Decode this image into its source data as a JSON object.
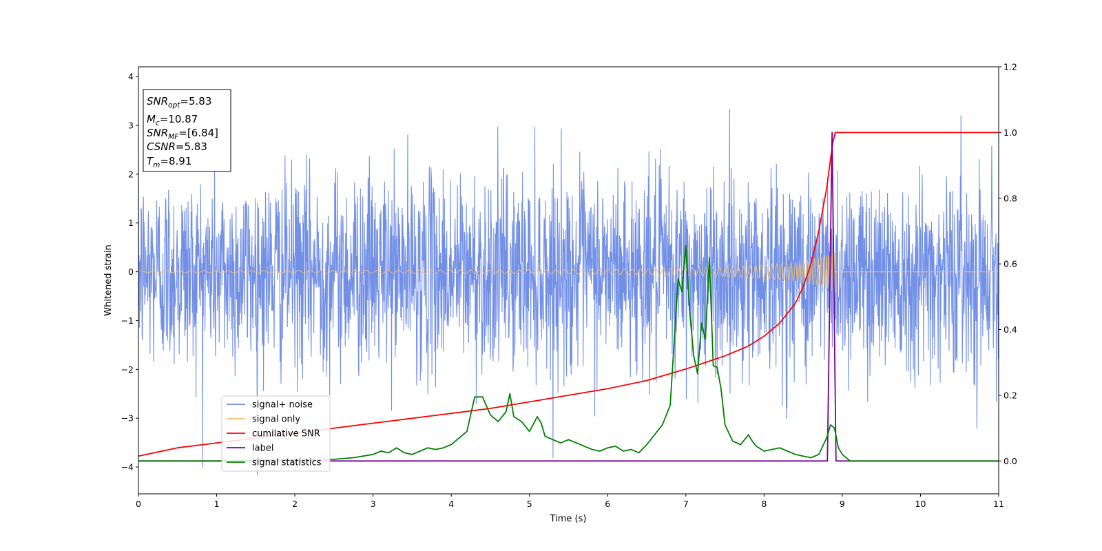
{
  "chart_data": {
    "type": "line",
    "xlabel": "Time (s)",
    "ylabel": "Whitened strain",
    "xlim": [
      0,
      11
    ],
    "ylim": [
      -4.55,
      4.2
    ],
    "ylim_right": [
      -0.1,
      1.2
    ],
    "xticks": [
      "0",
      "1",
      "2",
      "3",
      "4",
      "5",
      "6",
      "7",
      "8",
      "9",
      "10",
      "11"
    ],
    "yticks": [
      "4",
      "3",
      "2",
      "1",
      "0",
      "−1",
      "−2",
      "−3",
      "−4"
    ],
    "yticks_right": [
      "1.2",
      "1.0",
      "0.8",
      "0.6",
      "0.4",
      "0.2",
      "0.0"
    ],
    "grid": false,
    "legend_position": "lower-left",
    "annotation": {
      "snr_opt": "5.83",
      "mc": "10.87",
      "snr_mf": "[6.84]",
      "csnr": "5.83",
      "tm": "8.91"
    },
    "series": [
      {
        "name": "signal+ noise",
        "color": "#6a89e6",
        "axis": "left",
        "noise_sigma": 1.0,
        "x_range": [
          0,
          11
        ]
      },
      {
        "name": "signal only",
        "color": "#f5c26b",
        "axis": "left",
        "envelope": {
          "x": [
            0,
            3,
            5,
            6,
            7,
            7.5,
            8,
            8.3,
            8.5,
            8.7,
            8.8,
            8.87,
            8.91
          ],
          "amp": [
            0.02,
            0.03,
            0.04,
            0.05,
            0.08,
            0.1,
            0.14,
            0.18,
            0.22,
            0.3,
            0.36,
            0.4,
            0.4
          ]
        }
      },
      {
        "name": "cumilative SNR",
        "color": "#ff0000",
        "axis": "right",
        "x": [
          0,
          0.5,
          1,
          1.5,
          2,
          2.5,
          3,
          3.5,
          4,
          4.5,
          5,
          5.5,
          6,
          6.5,
          7,
          7.5,
          7.8,
          8,
          8.2,
          8.4,
          8.5,
          8.6,
          8.7,
          8.8,
          8.85,
          8.88,
          8.91,
          9,
          10,
          11
        ],
        "values": [
          0.015,
          0.04,
          0.055,
          0.07,
          0.085,
          0.1,
          0.115,
          0.13,
          0.145,
          0.16,
          0.18,
          0.2,
          0.22,
          0.245,
          0.28,
          0.32,
          0.35,
          0.38,
          0.42,
          0.48,
          0.53,
          0.6,
          0.7,
          0.83,
          0.92,
          0.97,
          1.0,
          1.0,
          1.0,
          1.0
        ]
      },
      {
        "name": "label",
        "color": "#7b0099",
        "axis": "right",
        "x": [
          0,
          8.81,
          8.87,
          8.92,
          8.93,
          11
        ],
        "values": [
          0.0,
          0.0,
          1.0,
          0.0,
          0.0,
          0.0
        ]
      },
      {
        "name": "signal statistics",
        "color": "#008000",
        "axis": "right",
        "x": [
          0,
          1,
          2,
          2.5,
          2.75,
          3,
          3.1,
          3.2,
          3.3,
          3.4,
          3.5,
          3.6,
          3.7,
          3.8,
          3.9,
          4.0,
          4.1,
          4.2,
          4.3,
          4.4,
          4.5,
          4.6,
          4.7,
          4.75,
          4.8,
          4.9,
          5.0,
          5.1,
          5.15,
          5.2,
          5.3,
          5.4,
          5.5,
          5.6,
          5.7,
          5.8,
          5.9,
          6.0,
          6.1,
          6.2,
          6.3,
          6.4,
          6.5,
          6.6,
          6.7,
          6.8,
          6.9,
          6.95,
          7.0,
          7.05,
          7.1,
          7.15,
          7.2,
          7.25,
          7.3,
          7.35,
          7.4,
          7.45,
          7.5,
          7.6,
          7.7,
          7.8,
          7.85,
          7.9,
          8.0,
          8.1,
          8.2,
          8.3,
          8.4,
          8.5,
          8.6,
          8.7,
          8.8,
          8.85,
          8.9,
          8.95,
          9.0,
          9.1,
          9.5,
          10,
          11
        ],
        "values": [
          0.0,
          0.0,
          0.005,
          0.005,
          0.01,
          0.02,
          0.03,
          0.025,
          0.04,
          0.025,
          0.02,
          0.03,
          0.04,
          0.035,
          0.04,
          0.05,
          0.07,
          0.09,
          0.195,
          0.195,
          0.14,
          0.12,
          0.15,
          0.205,
          0.135,
          0.12,
          0.09,
          0.135,
          0.115,
          0.075,
          0.065,
          0.055,
          0.065,
          0.055,
          0.045,
          0.035,
          0.03,
          0.04,
          0.045,
          0.03,
          0.035,
          0.025,
          0.05,
          0.08,
          0.11,
          0.17,
          0.555,
          0.515,
          0.655,
          0.45,
          0.32,
          0.265,
          0.42,
          0.37,
          0.62,
          0.29,
          0.285,
          0.22,
          0.11,
          0.06,
          0.05,
          0.08,
          0.06,
          0.045,
          0.03,
          0.035,
          0.04,
          0.03,
          0.02,
          0.015,
          0.01,
          0.02,
          0.07,
          0.11,
          0.1,
          0.04,
          0.02,
          0.0,
          0.0,
          0.0,
          0.0
        ]
      }
    ]
  }
}
